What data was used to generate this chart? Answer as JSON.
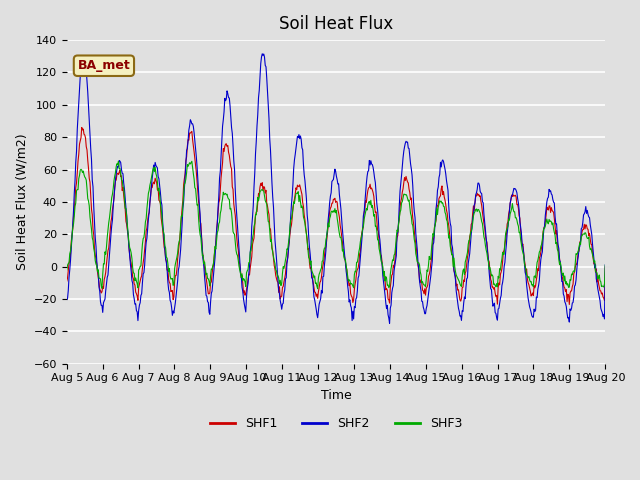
{
  "title": "Soil Heat Flux",
  "xlabel": "Time",
  "ylabel": "Soil Heat Flux (W/m2)",
  "label_box": "BA_met",
  "ylim": [
    -60,
    140
  ],
  "plot_bg_color": "#e0e0e0",
  "grid_color": "white",
  "shf1_color": "#cc0000",
  "shf2_color": "#0000cc",
  "shf3_color": "#00aa00",
  "legend_labels": [
    "SHF1",
    "SHF2",
    "SHF3"
  ],
  "x_tick_labels": [
    "Aug 5",
    "Aug 6",
    "Aug 7",
    "Aug 8",
    "Aug 9",
    "Aug 10",
    "Aug 11",
    "Aug 12",
    "Aug 13",
    "Aug 14",
    "Aug 15",
    "Aug 16",
    "Aug 17",
    "Aug 18",
    "Aug 19",
    "Aug 20"
  ],
  "n_days": 15,
  "points_per_day": 48,
  "shf2_peaks": [
    130,
    65,
    63,
    89,
    108,
    132,
    82,
    58,
    65,
    78,
    65,
    50,
    49,
    47,
    34
  ],
  "shf1_peaks": [
    85,
    58,
    53,
    82,
    75,
    52,
    50,
    42,
    50,
    55,
    47,
    45,
    45,
    38,
    25
  ],
  "shf3_peaks": [
    60,
    63,
    60,
    65,
    45,
    47,
    45,
    35,
    40,
    45,
    40,
    35,
    35,
    30,
    20
  ],
  "shf2_neg": -38,
  "shf1_neg": -23,
  "shf3_neg": -14
}
